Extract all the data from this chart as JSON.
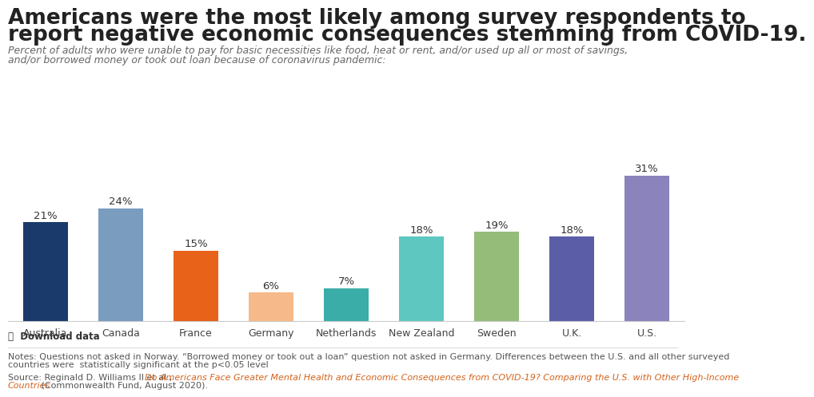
{
  "categories": [
    "Australia",
    "Canada",
    "France",
    "Germany",
    "Netherlands",
    "New Zealand",
    "Sweden",
    "U.K.",
    "U.S."
  ],
  "values": [
    21,
    24,
    15,
    6,
    7,
    18,
    19,
    18,
    31
  ],
  "bar_colors": [
    "#1a3a6b",
    "#7a9cbf",
    "#e8621a",
    "#f5b98a",
    "#3aada8",
    "#5ec8c0",
    "#96bc7a",
    "#5b5ea6",
    "#8b83bb"
  ],
  "title_line1": "Americans were the most likely among survey respondents to",
  "title_line2": "report negative economic consequences stemming from COVID-19.",
  "subtitle_line1": "Percent of adults who were unable to pay for basic necessities like food, heat or rent, and/or used up all or most of savings,",
  "subtitle_line2": "and/or borrowed money or took out loan because of coronavirus pandemic:",
  "notes_line1": "Notes: Questions not asked in Norway. “Borrowed money or took out a loan” question not asked in Germany. Differences between the U.S. and all other surveyed",
  "notes_line2": "countries were  statistically significant at the p<0.05 level",
  "source_prefix": "Source: Reginald D. Williams II et al., ",
  "source_link_line1": "Do Americans Face Greater Mental Health and Economic Consequences from COVID-19? Comparing the U.S. with Other High-Income",
  "source_link_line2": "Countries",
  "source_end": " (Commonwealth Fund, August 2020).",
  "download_text": "⤓  Download data",
  "ylim": [
    0,
    35
  ],
  "bar_label_fontsize": 9.5,
  "background_color": "#ffffff",
  "title_fontsize": 19,
  "subtitle_fontsize": 9,
  "notes_fontsize": 8,
  "xtick_fontsize": 9,
  "link_color": "#d4631c",
  "title_color": "#222222",
  "subtitle_color": "#666666",
  "notes_color": "#555555",
  "bar_label_color": "#333333"
}
